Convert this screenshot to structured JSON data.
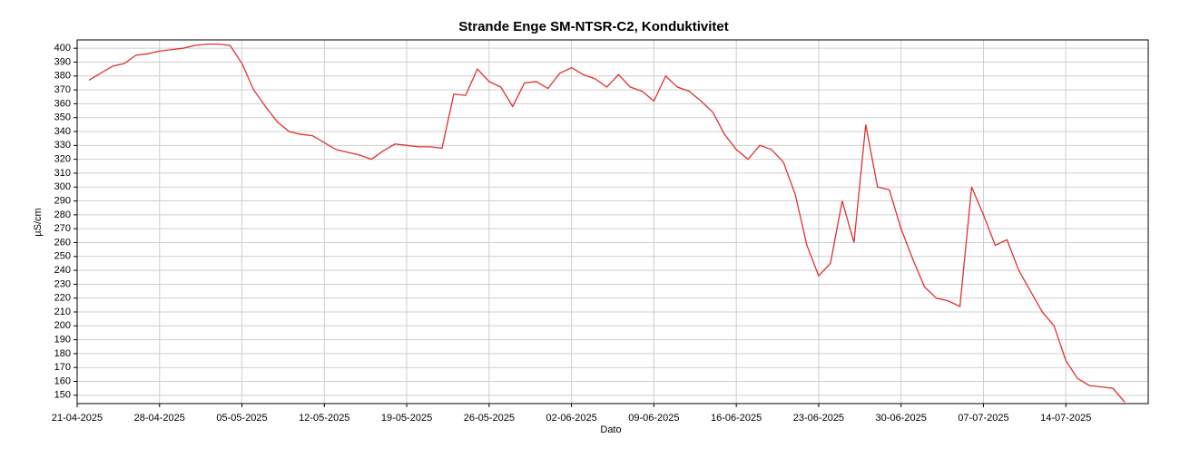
{
  "chart_data": {
    "type": "line",
    "title": "Strande Enge SM-NTSR-C2, Konduktivitet",
    "xlabel": "Dato",
    "ylabel": "µS/cm",
    "x": [
      "2025-04-22",
      "2025-04-23",
      "2025-04-24",
      "2025-04-25",
      "2025-04-26",
      "2025-04-27",
      "2025-04-28",
      "2025-04-29",
      "2025-04-30",
      "2025-05-01",
      "2025-05-02",
      "2025-05-03",
      "2025-05-04",
      "2025-05-05",
      "2025-05-06",
      "2025-05-07",
      "2025-05-08",
      "2025-05-09",
      "2025-05-10",
      "2025-05-11",
      "2025-05-12",
      "2025-05-13",
      "2025-05-14",
      "2025-05-15",
      "2025-05-16",
      "2025-05-17",
      "2025-05-18",
      "2025-05-19",
      "2025-05-20",
      "2025-05-21",
      "2025-05-22",
      "2025-05-23",
      "2025-05-24",
      "2025-05-25",
      "2025-05-26",
      "2025-05-27",
      "2025-05-28",
      "2025-05-29",
      "2025-05-30",
      "2025-05-31",
      "2025-06-01",
      "2025-06-02",
      "2025-06-03",
      "2025-06-04",
      "2025-06-05",
      "2025-06-06",
      "2025-06-07",
      "2025-06-08",
      "2025-06-09",
      "2025-06-10",
      "2025-06-11",
      "2025-06-12",
      "2025-06-13",
      "2025-06-14",
      "2025-06-15",
      "2025-06-16",
      "2025-06-17",
      "2025-06-18",
      "2025-06-19",
      "2025-06-20",
      "2025-06-21",
      "2025-06-22",
      "2025-06-23",
      "2025-06-24",
      "2025-06-25",
      "2025-06-26",
      "2025-06-27",
      "2025-06-28",
      "2025-06-29",
      "2025-06-30",
      "2025-07-01",
      "2025-07-02",
      "2025-07-03",
      "2025-07-04",
      "2025-07-05",
      "2025-07-06",
      "2025-07-07",
      "2025-07-08",
      "2025-07-09",
      "2025-07-10",
      "2025-07-11",
      "2025-07-12",
      "2025-07-13",
      "2025-07-14",
      "2025-07-15",
      "2025-07-16",
      "2025-07-17",
      "2025-07-18",
      "2025-07-19"
    ],
    "series": [
      {
        "color": "#e03030",
        "values": [
          377,
          382,
          387,
          389,
          395,
          396,
          398,
          399,
          400,
          402,
          403,
          403,
          402,
          389,
          370,
          358,
          347,
          340,
          338,
          337,
          332,
          327,
          325,
          323,
          320,
          326,
          331,
          330,
          329,
          329,
          328,
          367,
          366,
          385,
          376,
          372,
          358,
          375,
          376,
          371,
          382,
          386,
          381,
          378,
          372,
          381,
          372,
          369,
          362,
          380,
          372,
          369,
          362,
          354,
          338,
          327,
          320,
          330,
          327,
          318,
          295,
          258,
          236,
          245,
          290,
          260,
          345,
          300,
          298,
          270,
          248,
          228,
          220,
          218,
          214,
          300,
          280,
          258,
          262,
          240,
          225,
          210,
          200,
          175,
          162,
          157,
          156,
          155,
          145
        ]
      }
    ],
    "xlim": [
      "2025-04-21",
      "2025-07-21"
    ],
    "xticks": [
      {
        "value": "2025-04-21",
        "label": "21-04-2025"
      },
      {
        "value": "2025-04-28",
        "label": "28-04-2025"
      },
      {
        "value": "2025-05-05",
        "label": "05-05-2025"
      },
      {
        "value": "2025-05-12",
        "label": "12-05-2025"
      },
      {
        "value": "2025-05-19",
        "label": "19-05-2025"
      },
      {
        "value": "2025-05-26",
        "label": "26-05-2025"
      },
      {
        "value": "2025-06-02",
        "label": "02-06-2025"
      },
      {
        "value": "2025-06-09",
        "label": "09-06-2025"
      },
      {
        "value": "2025-06-16",
        "label": "16-06-2025"
      },
      {
        "value": "2025-06-23",
        "label": "23-06-2025"
      },
      {
        "value": "2025-06-30",
        "label": "30-06-2025"
      },
      {
        "value": "2025-07-07",
        "label": "07-07-2025"
      },
      {
        "value": "2025-07-14",
        "label": "14-07-2025"
      }
    ],
    "ylim": [
      144,
      406
    ],
    "yticks": [
      150,
      160,
      170,
      180,
      190,
      200,
      210,
      220,
      230,
      240,
      250,
      260,
      270,
      280,
      290,
      300,
      310,
      320,
      330,
      340,
      350,
      360,
      370,
      380,
      390,
      400
    ],
    "grid": true
  }
}
